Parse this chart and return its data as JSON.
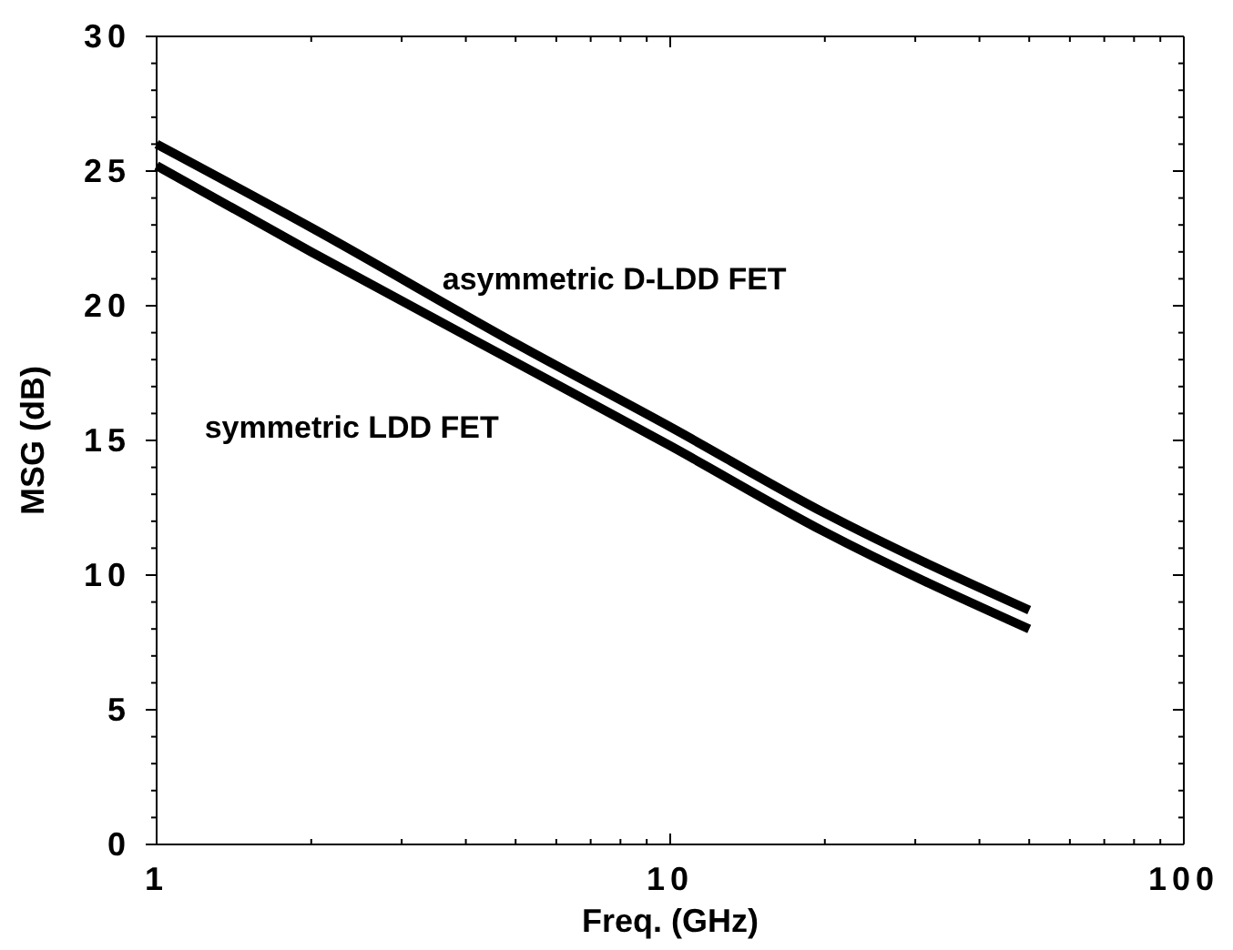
{
  "chart_data": {
    "type": "line",
    "xlabel": "Freq. (GHz)",
    "ylabel": "MSG (dB)",
    "log": "x",
    "xlim": [
      1,
      100
    ],
    "ylim": [
      0,
      30
    ],
    "xticks": [
      1,
      {
        "value": 2,
        "label": null
      },
      {
        "value": 3,
        "label": null
      },
      {
        "value": 4,
        "label": null
      },
      {
        "value": 5,
        "label": null
      },
      {
        "value": 6,
        "label": null
      },
      {
        "value": 7,
        "label": null
      },
      {
        "value": 8,
        "label": null
      },
      {
        "value": 9,
        "label": null
      },
      10,
      {
        "value": 20,
        "label": null
      },
      {
        "value": 30,
        "label": null
      },
      {
        "value": 40,
        "label": null
      },
      {
        "value": 50,
        "label": null
      },
      {
        "value": 60,
        "label": null
      },
      {
        "value": 70,
        "label": null
      },
      {
        "value": 80,
        "label": null
      },
      {
        "value": 90,
        "label": null
      },
      100
    ],
    "yticks": [
      0,
      {
        "value": 1,
        "label": null
      },
      {
        "value": 2,
        "label": null
      },
      {
        "value": 3,
        "label": null
      },
      {
        "value": 4,
        "label": null
      },
      5,
      {
        "value": 6,
        "label": null
      },
      {
        "value": 7,
        "label": null
      },
      {
        "value": 8,
        "label": null
      },
      {
        "value": 9,
        "label": null
      },
      10,
      {
        "value": 11,
        "label": null
      },
      {
        "value": 12,
        "label": null
      },
      {
        "value": 13,
        "label": null
      },
      {
        "value": 14,
        "label": null
      },
      15,
      {
        "value": 16,
        "label": null
      },
      {
        "value": 17,
        "label": null
      },
      {
        "value": 18,
        "label": null
      },
      {
        "value": 19,
        "label": null
      },
      20,
      {
        "value": 21,
        "label": null
      },
      {
        "value": 22,
        "label": null
      },
      {
        "value": 23,
        "label": null
      },
      {
        "value": 24,
        "label": null
      },
      25,
      {
        "value": 26,
        "label": null
      },
      {
        "value": 27,
        "label": null
      },
      {
        "value": 28,
        "label": null
      },
      {
        "value": 29,
        "label": null
      },
      30
    ],
    "grid": false,
    "legend": false,
    "marker": "none",
    "line_style": "solid",
    "x": [
      1,
      2,
      5,
      10,
      20,
      50
    ],
    "series": [
      {
        "name": "asymmetric D-LDD FET",
        "color": "#000000",
        "values": [
          26.0,
          22.9,
          18.6,
          15.5,
          12.3,
          8.7
        ]
      },
      {
        "name": "symmetric LDD FET",
        "color": "#000000",
        "values": [
          25.2,
          22.0,
          17.9,
          14.8,
          11.6,
          8.0
        ]
      }
    ]
  }
}
